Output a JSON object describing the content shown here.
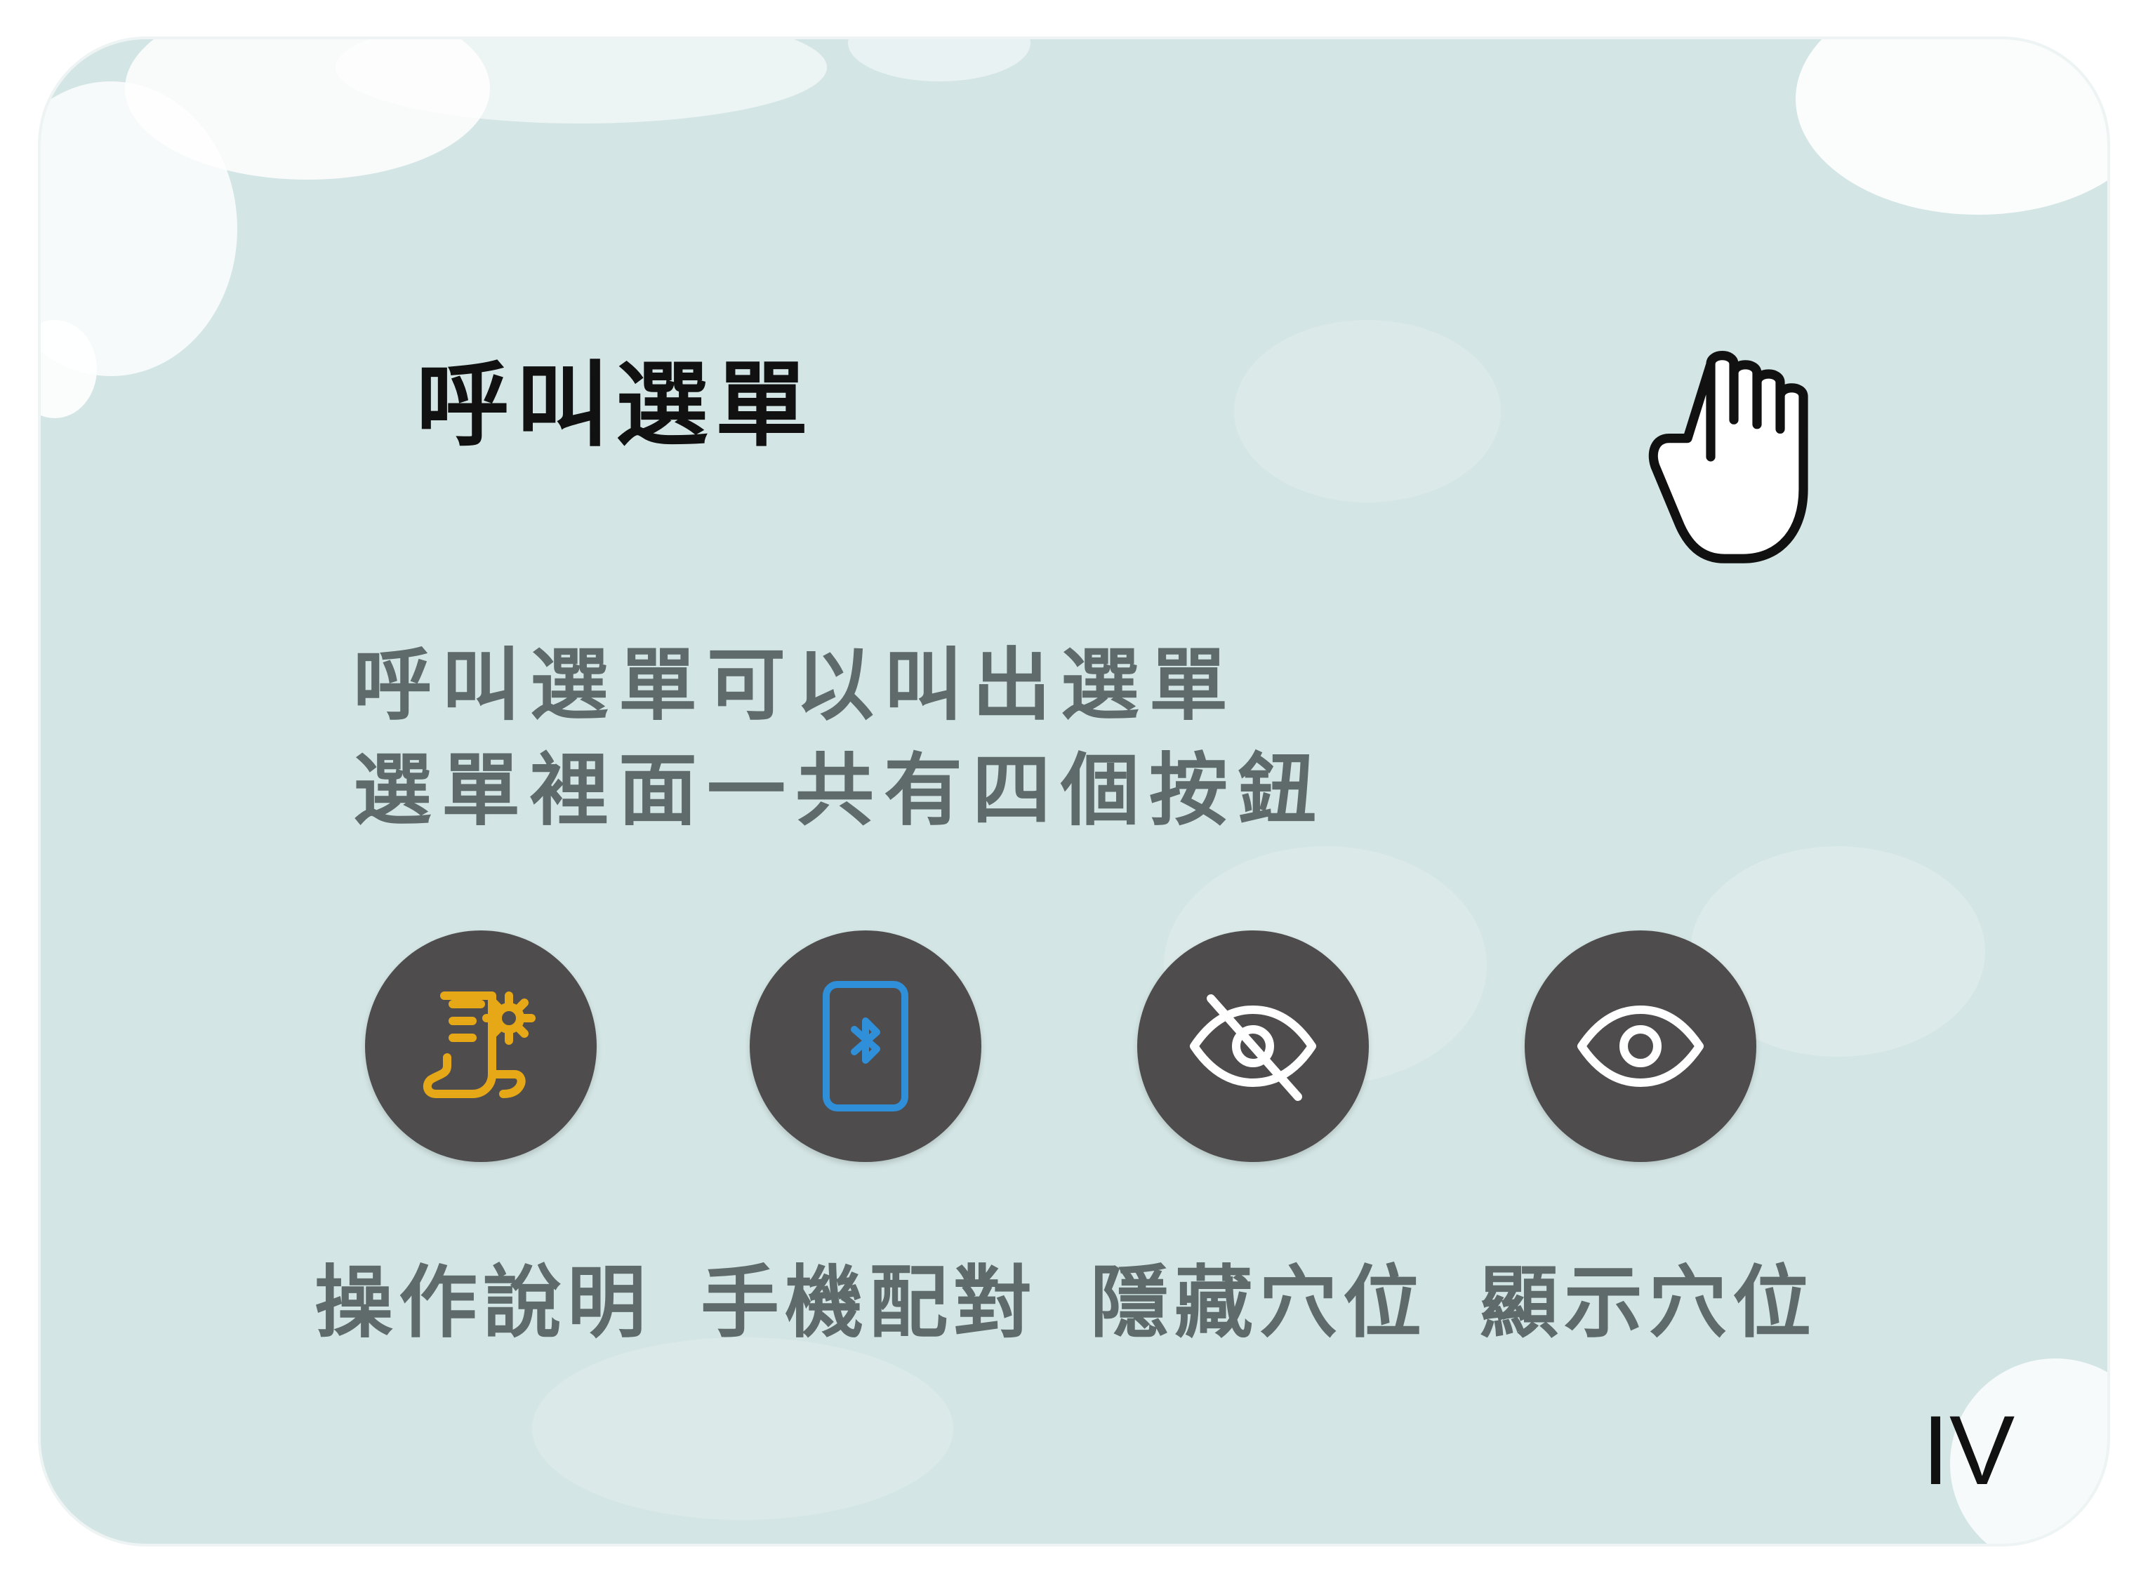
{
  "title": "呼叫選單",
  "description": {
    "line1": "呼叫選單可以叫出選單",
    "line2": "選單裡面一共有四個按鈕"
  },
  "hand_icon": "hand-grab-icon",
  "buttons": [
    {
      "label": "操作說明",
      "icon": "manual-settings-icon",
      "color": "#e6a817"
    },
    {
      "label": "手機配對",
      "icon": "phone-bluetooth-icon",
      "color": "#2f8fd8"
    },
    {
      "label": "隱藏穴位",
      "icon": "eye-off-icon",
      "color": "#ffffff"
    },
    {
      "label": "顯示穴位",
      "icon": "eye-icon",
      "color": "#ffffff"
    }
  ],
  "page_number": "IV",
  "colors": {
    "card_background": "#d3e5e4",
    "button_background": "#4e4c4d",
    "text_gray": "#5f6b6b",
    "title_black": "#111111"
  }
}
